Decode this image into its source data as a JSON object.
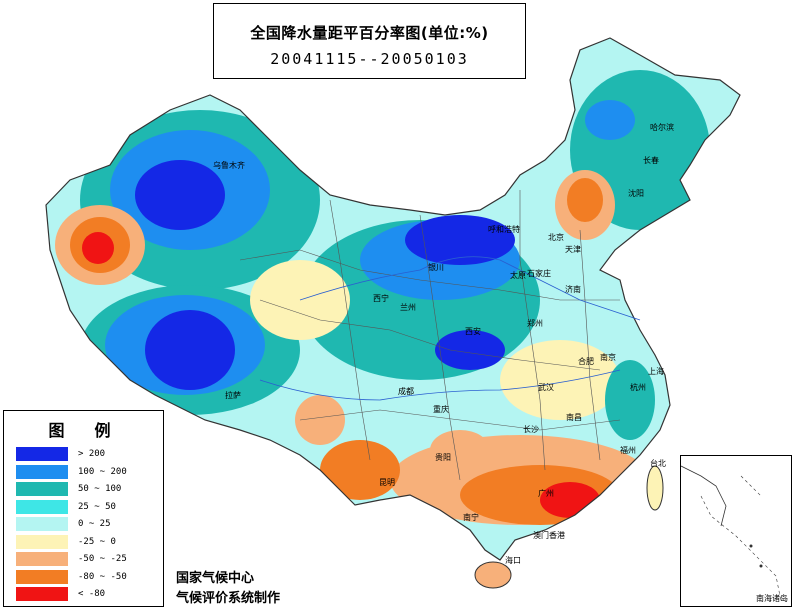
{
  "title": {
    "main": "全国降水量距平百分率图(单位:%)",
    "period": "20041115--20050103"
  },
  "legend": {
    "title": "图例",
    "items": [
      {
        "label": "> 200",
        "color": "#1428e6"
      },
      {
        "label": "100 ~ 200",
        "color": "#1e8ef0"
      },
      {
        "label": "50 ~ 100",
        "color": "#1fb8b0"
      },
      {
        "label": "25 ~ 50",
        "color": "#3ee6e6"
      },
      {
        "label": "0 ~ 25",
        "color": "#b4f5f2"
      },
      {
        "label": "-25 ~ 0",
        "color": "#fdf3b6"
      },
      {
        "label": "-50 ~ -25",
        "color": "#f7b07a"
      },
      {
        "label": "-80 ~ -50",
        "color": "#f27d24"
      },
      {
        "label": "< -80",
        "color": "#f01414"
      }
    ]
  },
  "credits": {
    "center": "国家气候中心",
    "system": "气候评价系统制作"
  },
  "inset": {
    "label": "南海诸岛"
  },
  "cities": [
    {
      "name": "乌鲁木齐",
      "id": "urumqi"
    },
    {
      "name": "哈尔滨",
      "id": "harbin"
    },
    {
      "name": "长春",
      "id": "changchun"
    },
    {
      "name": "沈阳",
      "id": "shenyang"
    },
    {
      "name": "呼和浩特",
      "id": "hohhot"
    },
    {
      "name": "北京",
      "id": "beijing"
    },
    {
      "name": "天津",
      "id": "tianjin"
    },
    {
      "name": "银川",
      "id": "yinchuan"
    },
    {
      "name": "太原",
      "id": "taiyuan"
    },
    {
      "name": "石家庄",
      "id": "shijiazhuang"
    },
    {
      "name": "济南",
      "id": "jinan"
    },
    {
      "name": "西宁",
      "id": "xining"
    },
    {
      "name": "兰州",
      "id": "lanzhou"
    },
    {
      "name": "西安",
      "id": "xian"
    },
    {
      "name": "郑州",
      "id": "zhengzhou"
    },
    {
      "name": "合肥",
      "id": "hefei"
    },
    {
      "name": "南京",
      "id": "nanjing"
    },
    {
      "name": "上海",
      "id": "shanghai"
    },
    {
      "name": "拉萨",
      "id": "lhasa"
    },
    {
      "name": "成都",
      "id": "chengdu"
    },
    {
      "name": "重庆",
      "id": "chongqing"
    },
    {
      "name": "武汉",
      "id": "wuhan"
    },
    {
      "name": "杭州",
      "id": "hangzhou"
    },
    {
      "name": "长沙",
      "id": "changsha"
    },
    {
      "name": "南昌",
      "id": "nanchang"
    },
    {
      "name": "福州",
      "id": "fuzhou"
    },
    {
      "name": "台北",
      "id": "taipei"
    },
    {
      "name": "贵阳",
      "id": "guiyang"
    },
    {
      "name": "昆明",
      "id": "kunming"
    },
    {
      "name": "南宁",
      "id": "nanning"
    },
    {
      "name": "广州",
      "id": "guangzhou"
    },
    {
      "name": "澳门香港",
      "id": "macau-hk"
    },
    {
      "name": "海口",
      "id": "haikou"
    }
  ]
}
